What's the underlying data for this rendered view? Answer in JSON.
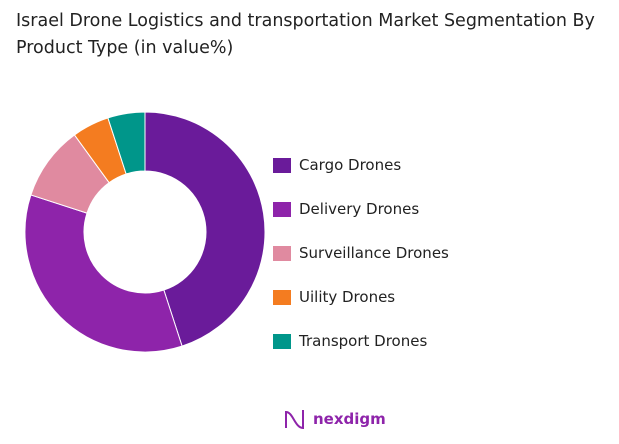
{
  "chart_data": {
    "type": "pie",
    "donut": true,
    "title": "Israel Drone Logistics and transportation Market Segmentation By Product Type (in value%)",
    "categories": [
      "Cargo Drones",
      "Delivery Drones",
      "Surveillance Drones",
      "Uility Drones",
      "Transport Drones"
    ],
    "values": [
      45,
      35,
      10,
      5,
      5
    ],
    "colors": [
      "#6a1b9a",
      "#8e24aa",
      "#e08aa0",
      "#f47c20",
      "#00968a"
    ],
    "legend": "right"
  },
  "logo": {
    "text": "nexdigm"
  }
}
